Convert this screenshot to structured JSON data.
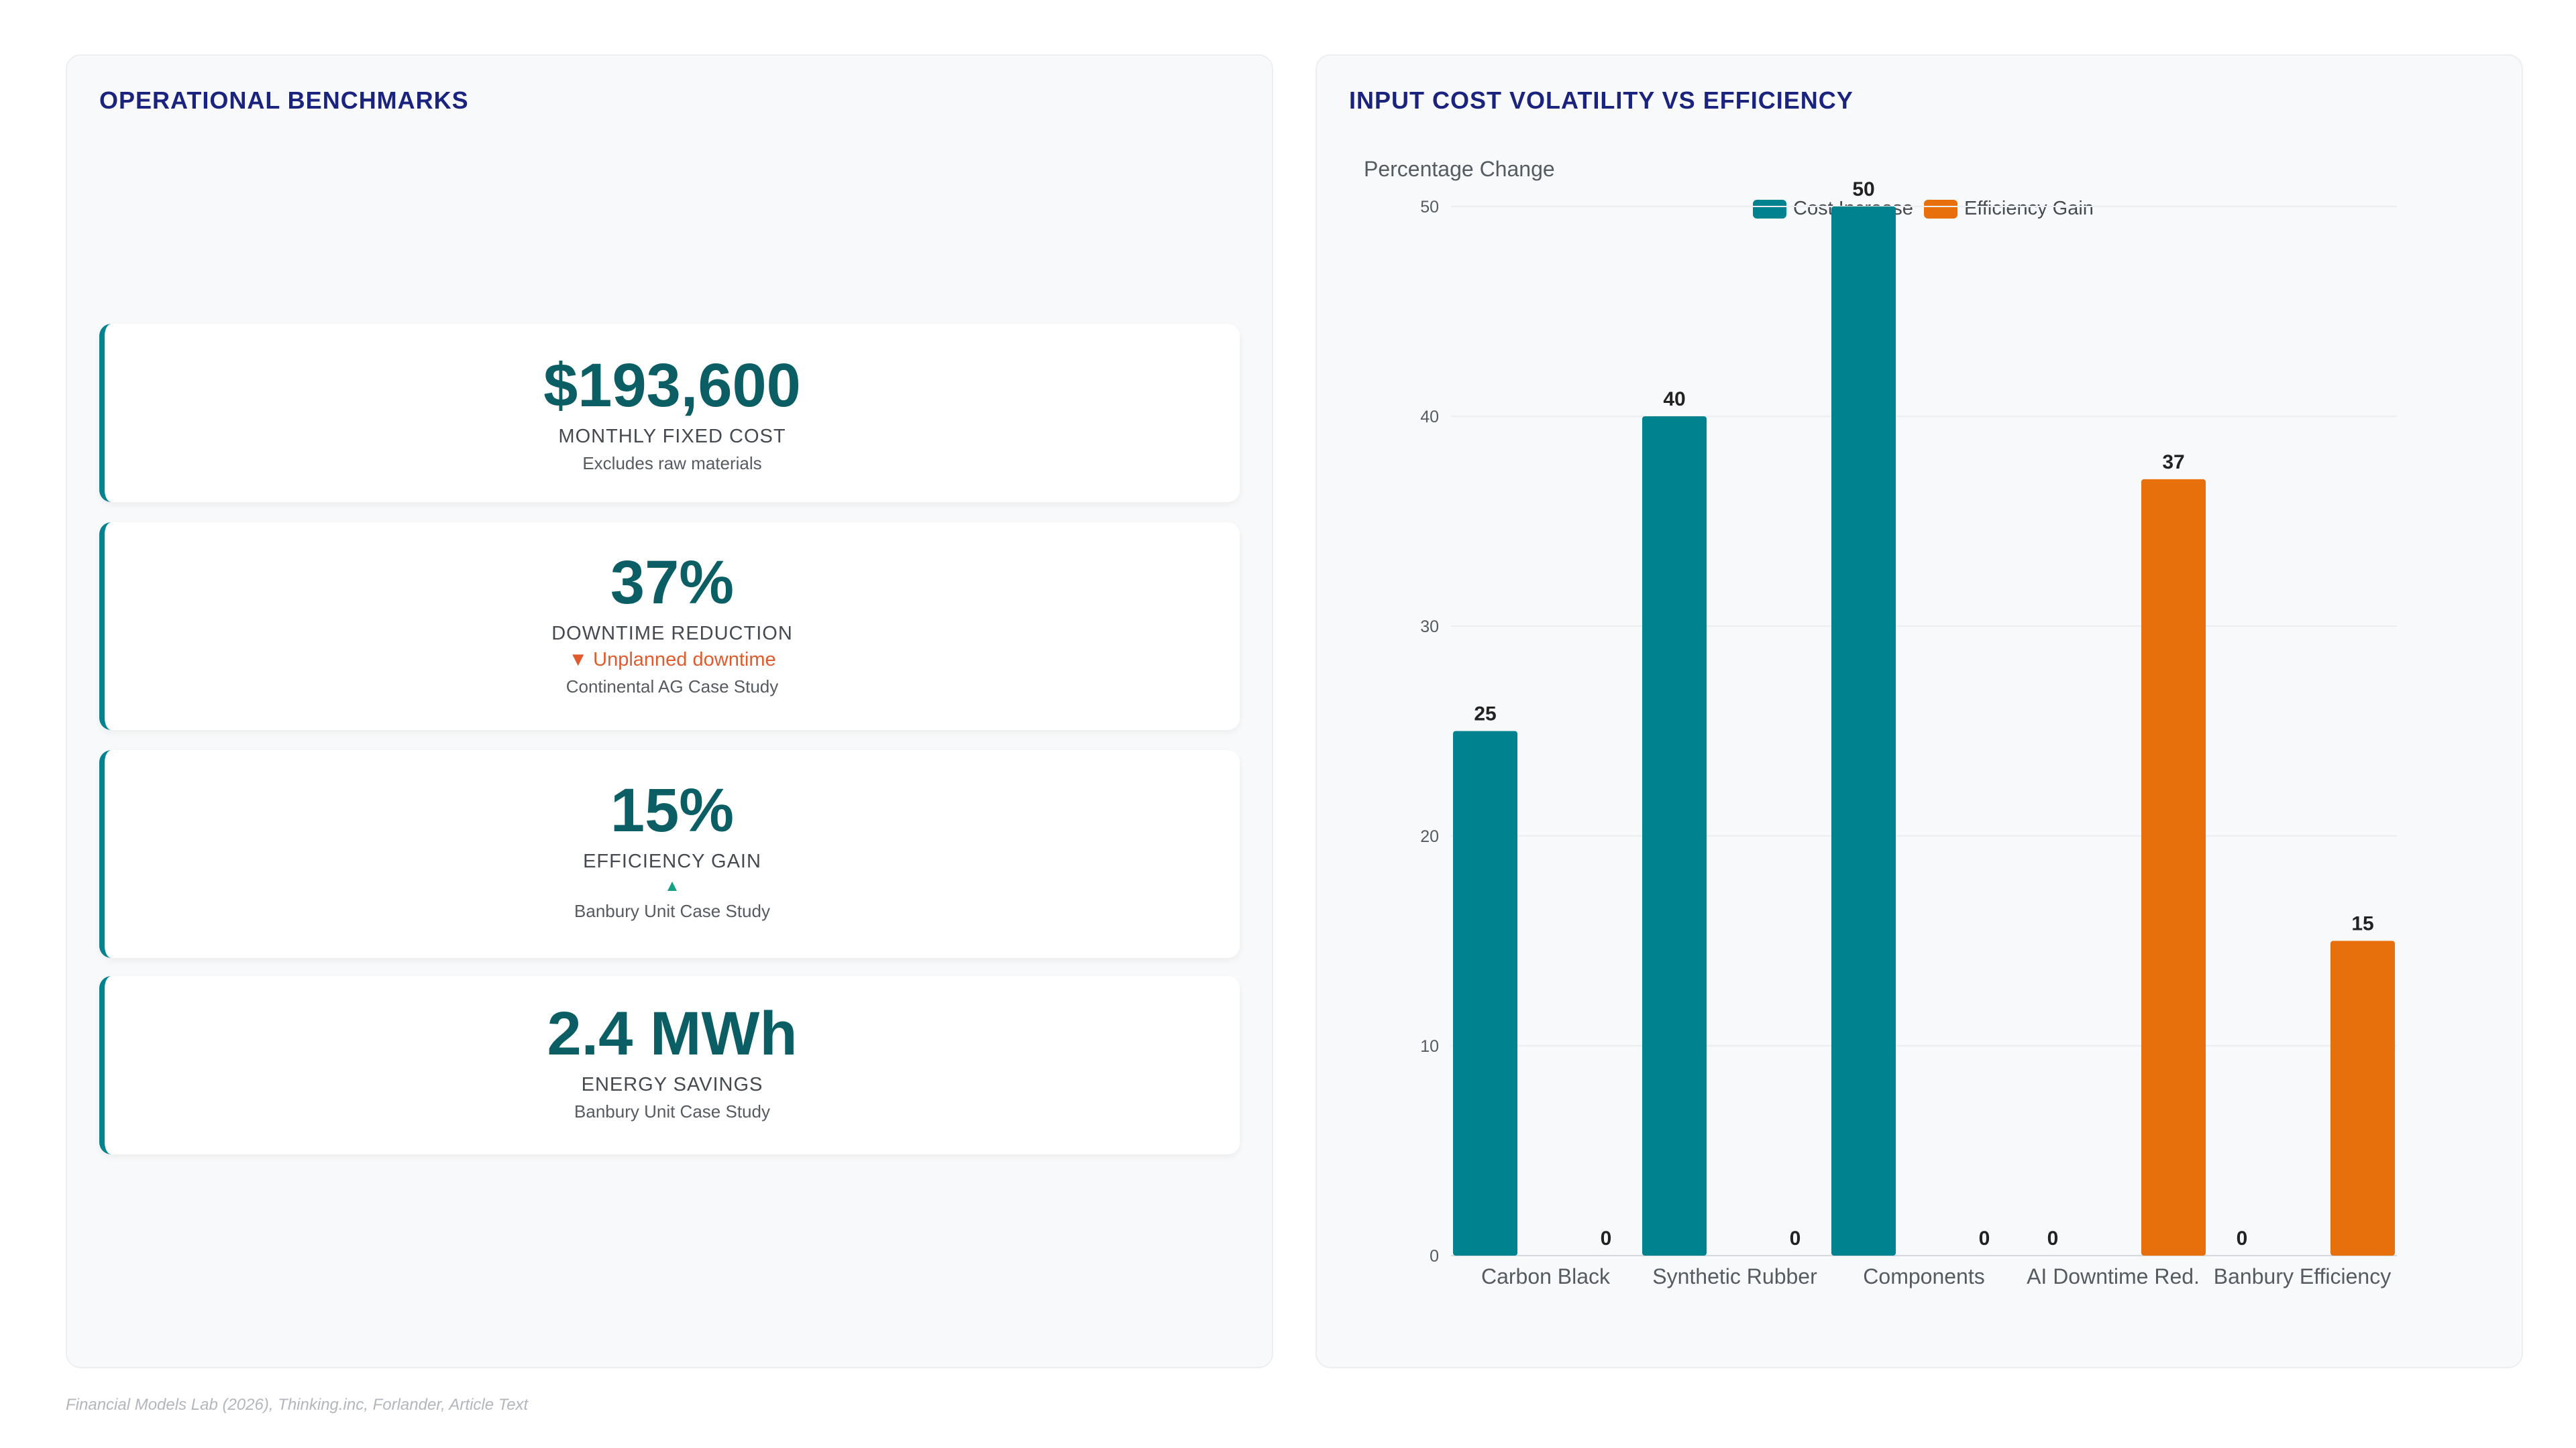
{
  "left_panel": {
    "title": "OPERATIONAL BENCHMARKS",
    "kpis": [
      {
        "value": "$193,600",
        "label": "MONTHLY FIXED COST",
        "trend": "",
        "source": "Excludes raw materials"
      },
      {
        "value": "37%",
        "label": "DOWNTIME REDUCTION",
        "trend": "▼ Unplanned downtime",
        "source": "Continental AG Case Study"
      },
      {
        "value": "15%",
        "label": "EFFICIENCY GAIN",
        "trend": "▲",
        "source": "Banbury Unit Case Study"
      },
      {
        "value": "2.4 MWh",
        "label": "ENERGY SAVINGS",
        "trend": "",
        "source": "Banbury Unit Case Study"
      }
    ]
  },
  "right_panel": {
    "title": "INPUT COST VOLATILITY VS EFFICIENCY"
  },
  "chart_data": {
    "type": "bar",
    "title": "INPUT COST VOLATILITY VS EFFICIENCY",
    "ylabel": "Percentage Change",
    "xlabel": "",
    "ylim": [
      0,
      50
    ],
    "yticks": [
      0,
      10,
      20,
      30,
      40,
      50
    ],
    "categories": [
      "Carbon Black",
      "Synthetic Rubber",
      "Components",
      "AI Downtime Red.",
      "Banbury Efficiency"
    ],
    "series": [
      {
        "name": "Cost Increase",
        "color": "#00838f",
        "values": [
          25,
          40,
          50,
          0,
          0
        ]
      },
      {
        "name": "Efficiency Gain",
        "color": "#e8700c",
        "values": [
          0,
          0,
          0,
          37,
          15
        ]
      }
    ],
    "grid": true,
    "legend": "top-center"
  },
  "footer": {
    "source": "Financial Models Lab (2026), Thinking.inc, Forlander, Article Text"
  }
}
